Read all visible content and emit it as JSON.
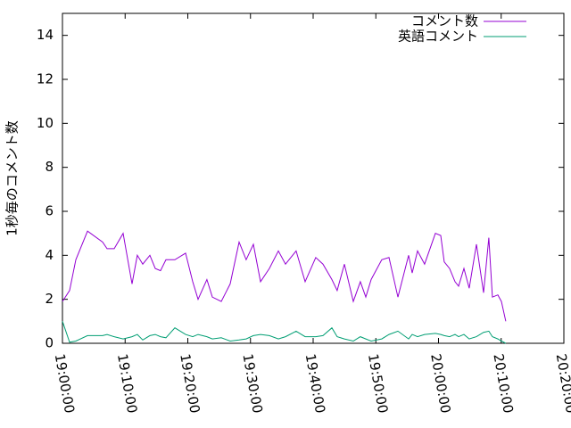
{
  "chart_data": {
    "type": "line",
    "ylabel": "1秒毎のコメント数",
    "x": [
      "19:00:00",
      "19:01:08",
      "19:02:08",
      "19:04:00",
      "19:06:24",
      "19:07:07",
      "19:08:15",
      "19:09:41",
      "19:11:06",
      "19:11:57",
      "19:12:49",
      "19:13:57",
      "19:14:48",
      "19:15:39",
      "19:16:31",
      "19:17:56",
      "19:19:39",
      "19:20:47",
      "19:21:38",
      "19:23:03",
      "19:23:55",
      "19:25:20",
      "19:26:46",
      "19:28:11",
      "19:29:19",
      "19:30:28",
      "19:31:36",
      "19:33:01",
      "19:34:27",
      "19:35:35",
      "19:37:17",
      "19:38:43",
      "19:40:25",
      "19:41:34",
      "19:42:59",
      "19:43:50",
      "19:44:59",
      "19:46:24",
      "19:47:32",
      "19:48:24",
      "19:49:15",
      "19:50:57",
      "19:52:06",
      "19:53:31",
      "19:55:14",
      "19:55:48",
      "19:56:39",
      "19:57:47",
      "19:59:30",
      "20:00:21",
      "20:00:55",
      "20:01:46",
      "20:02:38",
      "20:03:12",
      "20:04:03",
      "20:04:54",
      "20:06:03",
      "20:07:11",
      "20:08:02",
      "20:08:36",
      "20:09:28",
      "20:10:02",
      "20:10:44"
    ],
    "series": [
      {
        "name": "コメント数",
        "color": "#9400d3",
        "values": [
          1.9,
          2.4,
          3.8,
          5.1,
          4.6,
          4.3,
          4.3,
          5.0,
          2.7,
          4.0,
          3.6,
          4.0,
          3.4,
          3.3,
          3.8,
          3.8,
          4.1,
          2.8,
          2.0,
          2.9,
          2.1,
          1.9,
          2.7,
          4.6,
          3.8,
          4.5,
          2.8,
          3.4,
          4.2,
          3.6,
          4.2,
          2.8,
          3.9,
          3.6,
          2.9,
          2.4,
          3.6,
          1.9,
          2.8,
          2.1,
          2.9,
          3.8,
          3.9,
          2.1,
          4.0,
          3.2,
          4.2,
          3.6,
          5.0,
          4.9,
          3.7,
          3.4,
          2.8,
          2.6,
          3.4,
          2.5,
          4.5,
          2.3,
          4.8,
          2.1,
          2.2,
          1.9,
          1.0
        ]
      },
      {
        "name": "英語コメント",
        "color": "#009e73",
        "values": [
          1.0,
          0.05,
          0.1,
          0.35,
          0.35,
          0.4,
          0.3,
          0.2,
          0.3,
          0.4,
          0.15,
          0.35,
          0.4,
          0.3,
          0.25,
          0.7,
          0.4,
          0.3,
          0.4,
          0.3,
          0.2,
          0.25,
          0.1,
          0.15,
          0.2,
          0.35,
          0.4,
          0.35,
          0.2,
          0.3,
          0.55,
          0.3,
          0.3,
          0.35,
          0.7,
          0.3,
          0.2,
          0.1,
          0.3,
          0.2,
          0.1,
          0.2,
          0.4,
          0.55,
          0.2,
          0.4,
          0.3,
          0.4,
          0.45,
          0.4,
          0.35,
          0.3,
          0.4,
          0.3,
          0.4,
          0.2,
          0.3,
          0.5,
          0.55,
          0.3,
          0.2,
          0.1,
          0.0
        ]
      }
    ],
    "xlim": [
      "19:00:00",
      "20:20:00"
    ],
    "xticks": [
      "19:00:00",
      "19:10:00",
      "19:20:00",
      "19:30:00",
      "19:40:00",
      "19:50:00",
      "20:00:00",
      "20:10:00",
      "20:20:00"
    ],
    "ylim": [
      0,
      15
    ],
    "yticks": [
      0,
      2,
      4,
      6,
      8,
      10,
      12,
      14
    ],
    "legend": "top-right"
  }
}
